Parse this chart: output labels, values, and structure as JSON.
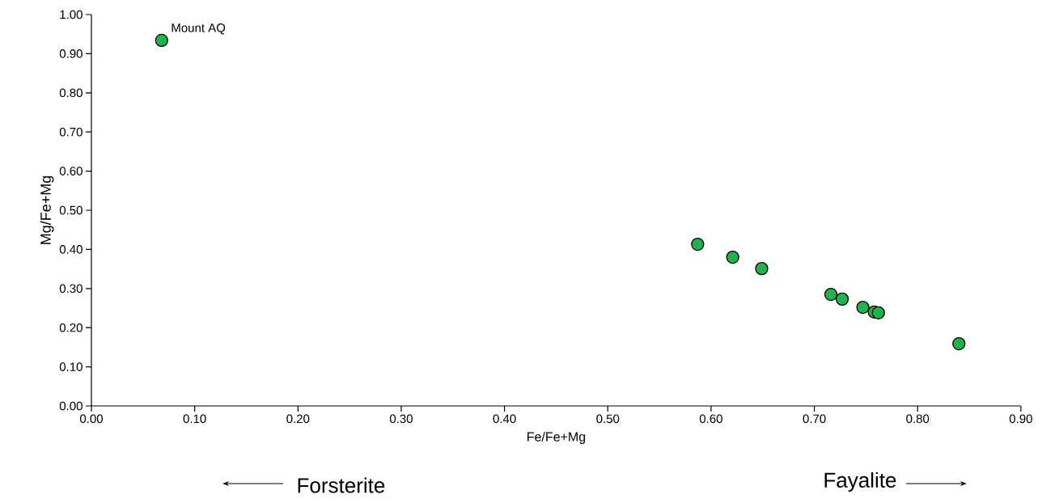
{
  "chart_data": {
    "type": "scatter",
    "xlabel": "Fe/Fe+Mg",
    "ylabel": "Mg/Fe+Mg",
    "x": [
      0.068,
      0.587,
      0.621,
      0.649,
      0.716,
      0.727,
      0.747,
      0.758,
      0.762,
      0.84
    ],
    "values": [
      0.934,
      0.413,
      0.38,
      0.351,
      0.285,
      0.273,
      0.252,
      0.24,
      0.238,
      0.159
    ],
    "color": "#22b14c",
    "marker": "circle",
    "grid": false,
    "xlim": [
      0,
      0.9
    ],
    "xticks": [
      {
        "value": 0,
        "label": "0.00"
      },
      {
        "value": 0.1,
        "label": "0.10"
      },
      {
        "value": 0.2,
        "label": "0.20"
      },
      {
        "value": 0.3,
        "label": "0.30"
      },
      {
        "value": 0.4,
        "label": "0.40"
      },
      {
        "value": 0.5,
        "label": "0.50"
      },
      {
        "value": 0.6,
        "label": "0.60"
      },
      {
        "value": 0.7,
        "label": "0.70"
      },
      {
        "value": 0.8,
        "label": "0.80"
      },
      {
        "value": 0.9,
        "label": "0.90"
      }
    ],
    "ylim": [
      0,
      1
    ],
    "yticks": [
      {
        "value": 0,
        "label": "0.00"
      },
      {
        "value": 0.1,
        "label": "0.10"
      },
      {
        "value": 0.2,
        "label": "0.20"
      },
      {
        "value": 0.3,
        "label": "0.30"
      },
      {
        "value": 0.4,
        "label": "0.40"
      },
      {
        "value": 0.5,
        "label": "0.50"
      },
      {
        "value": 0.6,
        "label": "0.60"
      },
      {
        "value": 0.7,
        "label": "0.70"
      },
      {
        "value": 0.8,
        "label": "0.80"
      },
      {
        "value": 0.9,
        "label": "0.90"
      },
      {
        "value": 1,
        "label": "1.00"
      }
    ],
    "annotations": [
      {
        "text": "Mount AQ",
        "x": 0.068,
        "y": 0.934
      },
      "Forsterite",
      "Fayalite"
    ]
  }
}
